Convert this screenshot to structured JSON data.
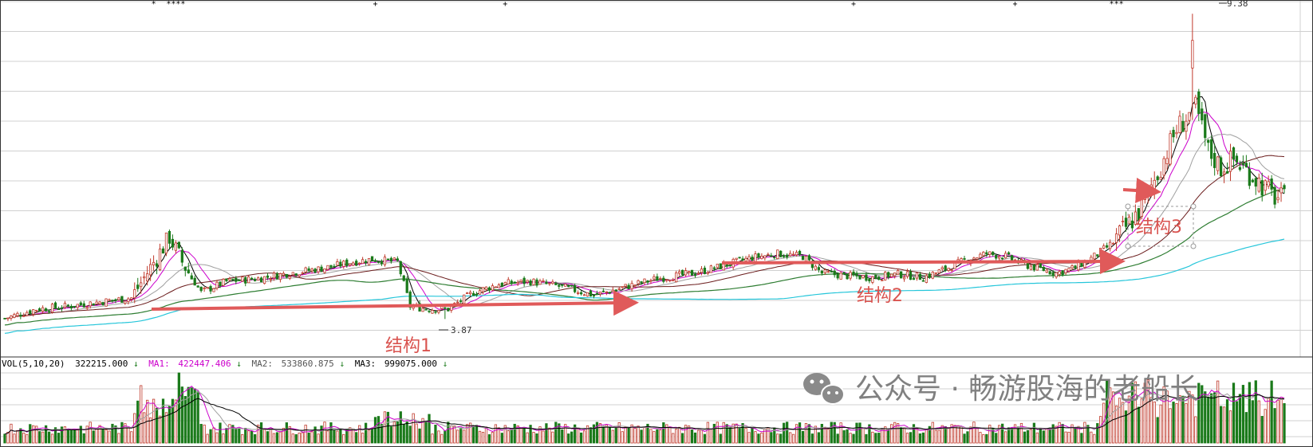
{
  "chart_data": {
    "type": "candlestick",
    "title": "",
    "price_panel": {
      "ylim": [
        3.3,
        9.6
      ],
      "grid": true,
      "high_label": "9.38",
      "low_label": "3.87",
      "moving_average_colors": [
        "#000000",
        "#cc00cc",
        "#a0a0a0",
        "#6a1b1b",
        "#2e7d32",
        "#26c6da"
      ],
      "trend_markers": [
        "*",
        "****",
        "+",
        "+",
        "+",
        "+",
        "***"
      ]
    },
    "volume_panel": {
      "indicator_title": "VOL(5,10,20)",
      "volume_value": "322215.000",
      "volume_arrow": "↓",
      "ma1_label": "MA1:",
      "ma1_value": "422447.406",
      "ma1_arrow": "↓",
      "ma2_label": "MA2:",
      "ma2_value": "533860.875",
      "ma2_arrow": "↓",
      "ma3_label": "MA3:",
      "ma3_value": "999075.000",
      "ma3_arrow": "↓"
    },
    "annotations": [
      {
        "text": "结构1"
      },
      {
        "text": "结构2"
      },
      {
        "text": "结构3"
      }
    ],
    "colors": {
      "up": "#c0392b",
      "down": "#1b7a1b",
      "arrow": "#e05a5a",
      "annotation": "#d9534f"
    }
  },
  "watermark": {
    "icon": "wechat-icon",
    "text": "公众号 · 畅游股海的老船长"
  }
}
